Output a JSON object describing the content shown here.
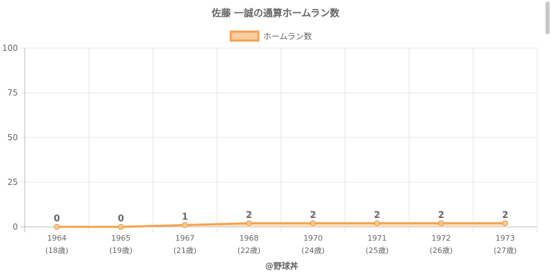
{
  "chart_data": {
    "type": "line",
    "title": "佐藤 一誠の通算ホームラン数",
    "categories": [
      "1964",
      "1965",
      "1967",
      "1968",
      "1970",
      "1971",
      "1972",
      "1973"
    ],
    "category_sublabels": [
      "(18歳)",
      "(19歳)",
      "(21歳)",
      "(22歳)",
      "(24歳)",
      "(25歳)",
      "(26歳)",
      "(27歳)"
    ],
    "series": [
      {
        "name": "ホームラン数",
        "values": [
          0,
          0,
          1,
          2,
          2,
          2,
          2,
          2
        ]
      }
    ],
    "data_labels": [
      "0",
      "0",
      "1",
      "2",
      "2",
      "2",
      "2",
      "2"
    ],
    "ylim": [
      0,
      100
    ],
    "yticks": [
      "0",
      "25",
      "50",
      "75",
      "100"
    ],
    "xlabel": "@野球丼",
    "ylabel": "",
    "grid": true,
    "legend_position": "top",
    "line_color": "#f6a04d",
    "fill_color": "#fbcf9f"
  }
}
